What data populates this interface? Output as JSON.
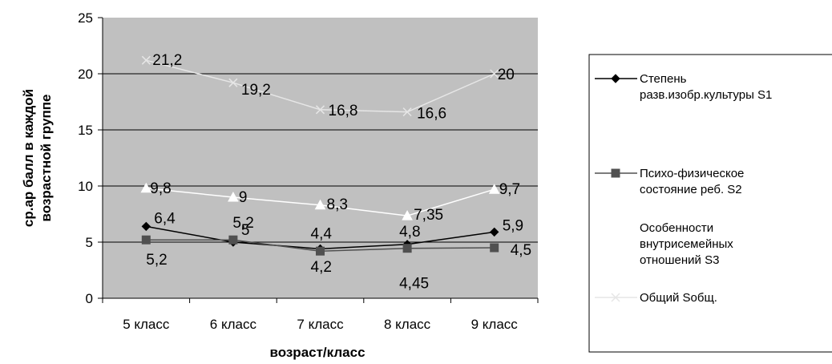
{
  "chart_data": {
    "type": "line",
    "categories": [
      "5 класс",
      "6 класс",
      "7 класс",
      "8 класс",
      "9 класс"
    ],
    "xlabel": "возраст/класс",
    "ylabel_lines": [
      "ср.ар балл в каждой",
      "возрастной группе"
    ],
    "ylim": [
      0,
      25
    ],
    "yticks": [
      0,
      5,
      10,
      15,
      20,
      25
    ],
    "grid": true,
    "plot_background": "#c0c0c0",
    "legend_position": "right",
    "series": [
      {
        "name_lines": [
          "Степень",
          "разв.изобр.культуры  S1"
        ],
        "values": [
          6.4,
          5,
          4.4,
          4.8,
          5.9
        ],
        "labels": [
          "6,4",
          "5",
          "4,4",
          "4,8",
          "5,9"
        ],
        "color": "#000000",
        "marker": "diamond"
      },
      {
        "name_lines": [
          "Психо-физическое",
          "состояние реб. S2"
        ],
        "values": [
          5.2,
          5.2,
          4.2,
          4.45,
          4.5
        ],
        "labels": [
          "5,2",
          "5,2",
          "4,2",
          "4,45",
          "4,5"
        ],
        "color": "#505050",
        "marker": "square"
      },
      {
        "name_lines": [
          "Особенности",
          "внутрисемейных",
          "отношений S3"
        ],
        "values": [
          9.8,
          9,
          8.3,
          7.35,
          9.7
        ],
        "labels": [
          "9,8",
          "9",
          "8,3",
          "7,35",
          "9,7"
        ],
        "color": "#ffffff",
        "marker": "triangle"
      },
      {
        "name_lines": [
          "Общий Sобщ."
        ],
        "values": [
          21.2,
          19.2,
          16.8,
          16.6,
          20
        ],
        "labels": [
          "21,2",
          "19,2",
          "16,8",
          "16,6",
          "20"
        ],
        "color": "#e6e6e6",
        "marker": "x"
      }
    ]
  }
}
